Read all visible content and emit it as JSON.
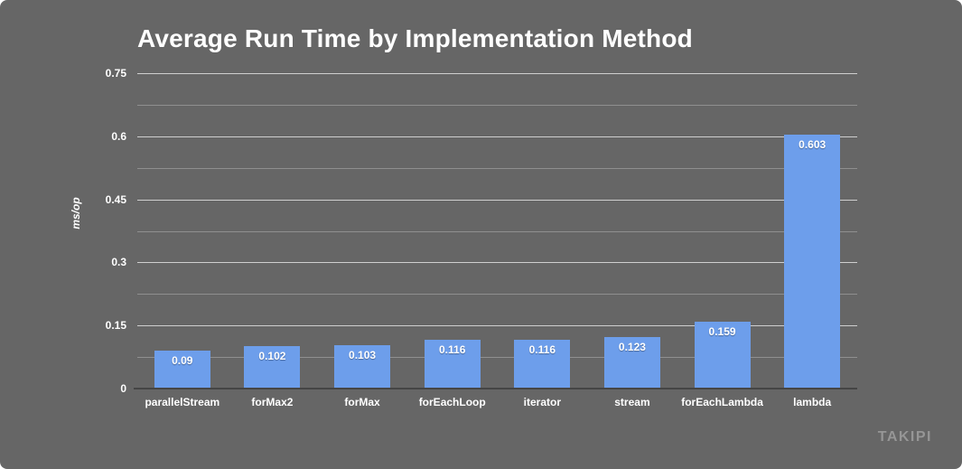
{
  "watermark": "TAKIPI",
  "colors": {
    "background": "#666666",
    "bar": "#6d9eeb",
    "text": "#ffffff",
    "gridline_major": "#cfcfcf",
    "gridline_minor": "#8f8f8f",
    "axis_line": "#454545",
    "watermark_text": "#969696"
  },
  "chart_data": {
    "type": "bar",
    "title": "Average Run Time by Implementation Method",
    "xlabel": "",
    "ylabel": "ms/op",
    "ylim": [
      0,
      0.75
    ],
    "grid": true,
    "gridline_minor_step": 0.075,
    "legend": "none",
    "categories": [
      "parallelStream",
      "forMax2",
      "forMax",
      "forEachLoop",
      "iterator",
      "stream",
      "forEachLambda",
      "lambda"
    ],
    "values": [
      0.09,
      0.102,
      0.103,
      0.116,
      0.116,
      0.123,
      0.159,
      0.603
    ],
    "value_labels": [
      "0.09",
      "0.102",
      "0.103",
      "0.116",
      "0.116",
      "0.123",
      "0.159",
      "0.603"
    ],
    "y_ticks": [
      {
        "value": 0,
        "label": "0"
      },
      {
        "value": 0.15,
        "label": "0.15"
      },
      {
        "value": 0.3,
        "label": "0.3"
      },
      {
        "value": 0.45,
        "label": "0.45"
      },
      {
        "value": 0.6,
        "label": "0.6"
      },
      {
        "value": 0.75,
        "label": "0.75"
      }
    ]
  }
}
